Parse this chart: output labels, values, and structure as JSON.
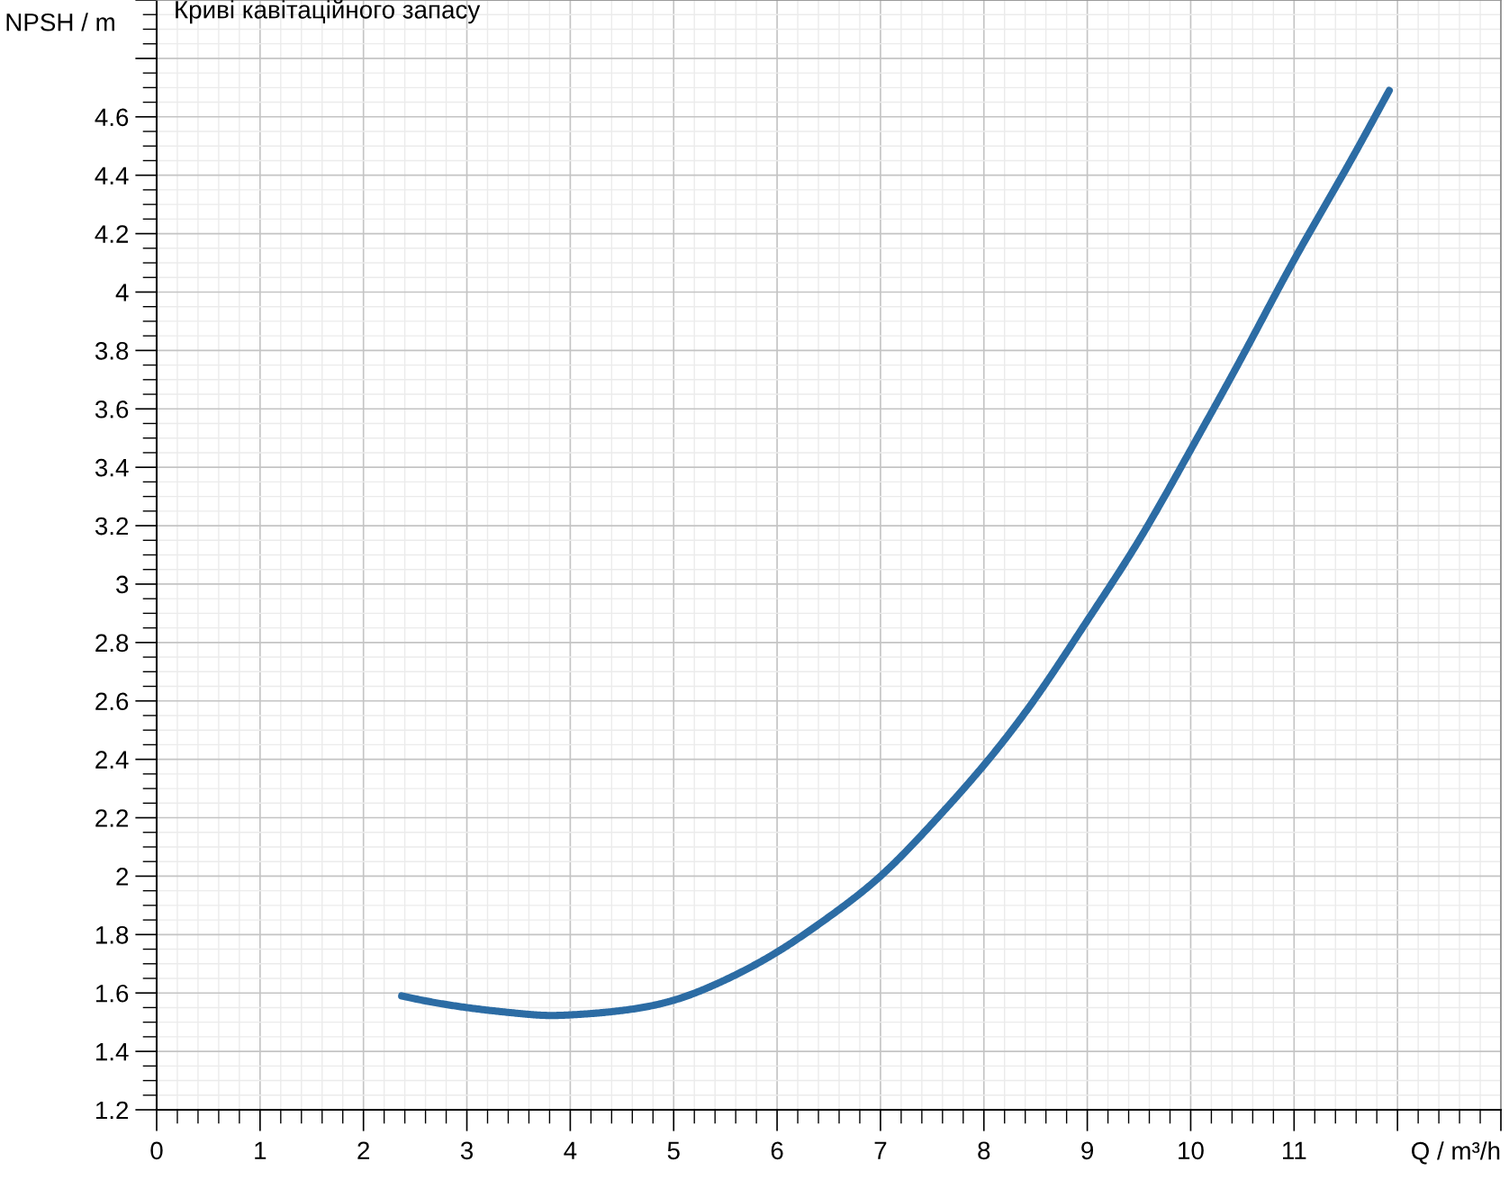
{
  "chart_data": {
    "type": "line",
    "title": "Криві кавітаційного запасу",
    "xlabel": "Q / m³/h",
    "ylabel": "NPSH / m",
    "x": [
      2.37,
      2.5,
      3.0,
      3.5,
      3.8,
      4.0,
      4.5,
      5.0,
      5.5,
      6.0,
      6.5,
      7.0,
      7.5,
      8.0,
      8.5,
      9.0,
      9.5,
      10.0,
      10.5,
      11.0,
      11.5,
      11.92
    ],
    "series": [
      {
        "color": "#2c6ca4",
        "values": [
          1.59,
          1.58,
          1.55,
          1.53,
          1.523,
          1.525,
          1.54,
          1.575,
          1.645,
          1.74,
          1.86,
          2.0,
          2.18,
          2.38,
          2.61,
          2.875,
          3.15,
          3.46,
          3.78,
          4.11,
          4.42,
          4.69
        ]
      }
    ],
    "xlim": [
      0,
      13
    ],
    "ylim": [
      1.2,
      5
    ],
    "xticks": [
      0,
      1,
      2,
      3,
      4,
      5,
      6,
      7,
      8,
      9,
      10,
      11,
      {
        "value": 12,
        "label": null
      },
      {
        "value": 13,
        "label": null
      }
    ],
    "yticks": [
      1.2,
      1.4,
      1.6,
      1.8,
      2,
      2.2,
      2.4,
      2.6,
      2.8,
      3,
      3.2,
      3.4,
      3.6,
      3.8,
      4,
      4.2,
      4.4,
      4.6,
      {
        "value": 4.8,
        "label": null
      },
      {
        "value": 5,
        "label": null
      }
    ],
    "grid": true,
    "line_style": "solid"
  }
}
